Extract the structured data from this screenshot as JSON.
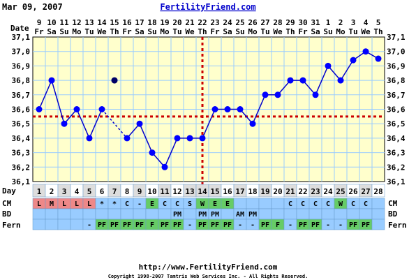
{
  "header": {
    "date": "Mar 09, 2007",
    "site": "FertilityFriend.com"
  },
  "footer": {
    "url": "http://www.FertilityFriend.com",
    "copyright": "Copyright 1998-2007 Tamtris Web Services Inc. - All Rights Reserved."
  },
  "colors": {
    "chart_bg": "#ffffcc",
    "grid": "#99ccff",
    "line": "#0000cc",
    "dot": "#0000ff",
    "coverline": "#cc0000",
    "row_bg": "#99ccff",
    "menses": "#ee8888",
    "cm_egg": "#66cc66",
    "fern_pf": "#66cc66"
  },
  "labels": {
    "date_row": "Date",
    "day_row": "Day",
    "cm_row": "CM",
    "bd_row": "BD",
    "fern_row": "Fern"
  },
  "chart_data": {
    "type": "line",
    "title": "",
    "ylim": [
      36.1,
      37.1
    ],
    "yticks": [
      "36,1",
      "36,2",
      "36,3",
      "36,4",
      "36,5",
      "36,6",
      "36,7",
      "36,8",
      "36,9",
      "37,0",
      "37,1"
    ],
    "dates": [
      "9",
      "10",
      "11",
      "12",
      "13",
      "14",
      "15",
      "16",
      "17",
      "18",
      "19",
      "20",
      "21",
      "22",
      "23",
      "24",
      "25",
      "26",
      "27",
      "28",
      "29",
      "30",
      "31",
      "1",
      "2",
      "3",
      "4",
      "5"
    ],
    "weekdays": [
      "Fr",
      "Sa",
      "Su",
      "Mo",
      "Tu",
      "We",
      "Th",
      "Fr",
      "Sa",
      "Su",
      "Mo",
      "Tu",
      "We",
      "Th",
      "Fr",
      "Sa",
      "Su",
      "Mo",
      "Tu",
      "We",
      "Th",
      "Fr",
      "Sa",
      "Su",
      "Mo",
      "Tu",
      "We",
      "Th"
    ],
    "cycle_days": [
      "1",
      "2",
      "3",
      "4",
      "5",
      "6",
      "7",
      "8",
      "9",
      "10",
      "11",
      "12",
      "13",
      "14",
      "15",
      "16",
      "17",
      "18",
      "19",
      "20",
      "21",
      "22",
      "23",
      "24",
      "25",
      "26",
      "27",
      "28"
    ],
    "temps": [
      36.6,
      36.8,
      36.5,
      36.6,
      36.4,
      36.6,
      36.8,
      36.4,
      36.5,
      36.3,
      36.2,
      36.4,
      36.4,
      36.4,
      36.6,
      36.6,
      36.6,
      36.5,
      36.7,
      36.7,
      36.8,
      36.8,
      36.7,
      36.9,
      36.8,
      36.94,
      37.0,
      36.95
    ],
    "discarded_days": [
      7
    ],
    "coverline": 36.55,
    "ovulation_day": 14,
    "cm": [
      "L",
      "M",
      "L",
      "L",
      "L",
      "*",
      "*",
      "C",
      "-",
      "E",
      "C",
      "C",
      "S",
      "W",
      "E",
      "E",
      "",
      "",
      "",
      "",
      "C",
      "C",
      "C",
      "C",
      "W",
      "C",
      "C",
      ""
    ],
    "bd": [
      "",
      "",
      "",
      "",
      "",
      "",
      "",
      "",
      "",
      "",
      "",
      "PM",
      "",
      "PM",
      "PM",
      "",
      "AM",
      "PM",
      "",
      "",
      "",
      "",
      "",
      "",
      "",
      "",
      "",
      ""
    ],
    "fern": [
      "",
      "",
      "",
      "",
      "-",
      "PF",
      "PF",
      "PF",
      "PF",
      "F",
      "PF",
      "PF",
      "-",
      "PF",
      "PF",
      "PF",
      "-",
      "-",
      "PF",
      "F",
      "-",
      "PF",
      "PF",
      "-",
      "-",
      "PF",
      "PF",
      ""
    ]
  }
}
